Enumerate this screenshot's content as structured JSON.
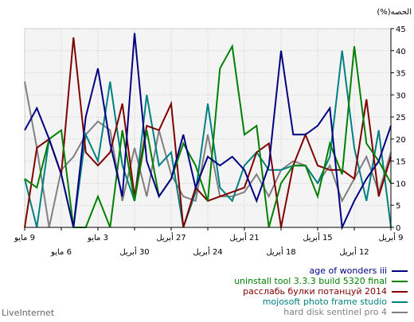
{
  "chart_data": {
    "type": "line",
    "ylabel": "(%)الحصه",
    "ylim": [
      0,
      45
    ],
    "yticks": [
      0,
      5,
      10,
      15,
      20,
      25,
      30,
      35,
      40,
      45
    ],
    "grid": true,
    "legend_position": "bottom-right",
    "x_tick_labels": [
      {
        "index": 0,
        "label": "9 مايو",
        "row": 1
      },
      {
        "index": 3,
        "label": "6 مايو",
        "row": 2
      },
      {
        "index": 6,
        "label": "3 مايو",
        "row": 1
      },
      {
        "index": 9,
        "label": "30 أبريل",
        "row": 2
      },
      {
        "index": 12,
        "label": "27 أبريل",
        "row": 1
      },
      {
        "index": 15,
        "label": "24 أبريل",
        "row": 2
      },
      {
        "index": 18,
        "label": "21 أبريل",
        "row": 1
      },
      {
        "index": 21,
        "label": "18 أبريل",
        "row": 2
      },
      {
        "index": 24,
        "label": "15 أبريل",
        "row": 1
      },
      {
        "index": 27,
        "label": "12 أبريل",
        "row": 2
      },
      {
        "index": 30,
        "label": "9 أبريل",
        "row": 1
      }
    ],
    "point_count": 31,
    "series": [
      {
        "name": "age of wonders iii",
        "color": "#000080",
        "values": [
          22,
          27,
          20,
          12,
          0,
          25,
          36,
          19,
          7,
          44,
          15,
          7,
          11,
          21,
          9,
          16,
          14,
          16,
          13,
          6,
          14,
          40,
          21,
          21,
          23,
          27,
          0,
          6,
          11,
          15,
          23
        ]
      },
      {
        "name": "uninstall tool 3.3.3 build 5320 final",
        "color": "#008000",
        "values": [
          11,
          9,
          20,
          22,
          0,
          0,
          7,
          0,
          22,
          6,
          22,
          7,
          11,
          19,
          14,
          6,
          36,
          41,
          21,
          23,
          0,
          10,
          14,
          14,
          7,
          19,
          12,
          41,
          19,
          15,
          10
        ]
      },
      {
        "name": "расслабь булки потанцуй 2014",
        "color": "#800000",
        "values": [
          0,
          18,
          20,
          12,
          43,
          17,
          14,
          17,
          28,
          7,
          23,
          22,
          28,
          0,
          9,
          6,
          7,
          8,
          9,
          17,
          19,
          0,
          14,
          21,
          14,
          13,
          13,
          11,
          29,
          7,
          16
        ]
      },
      {
        "name": "mojosoft photo frame studio",
        "color": "#008080",
        "values": [
          11,
          0,
          20,
          12,
          0,
          21,
          15,
          33,
          14,
          6,
          30,
          14,
          17,
          0,
          8,
          28,
          9,
          6,
          14,
          17,
          13,
          13,
          14,
          14,
          10,
          16,
          40,
          18,
          6,
          22,
          0
        ]
      },
      {
        "name": "hard disk sentinel pro 4",
        "color": "#808080",
        "values": [
          33,
          18,
          0,
          13,
          16,
          21,
          24,
          22,
          6,
          18,
          7,
          22,
          12,
          7,
          6,
          21,
          7,
          7,
          8,
          12,
          7,
          13,
          15,
          14,
          10,
          14,
          6,
          11,
          16,
          8,
          17
        ]
      }
    ]
  },
  "watermark": "LiveInternet"
}
